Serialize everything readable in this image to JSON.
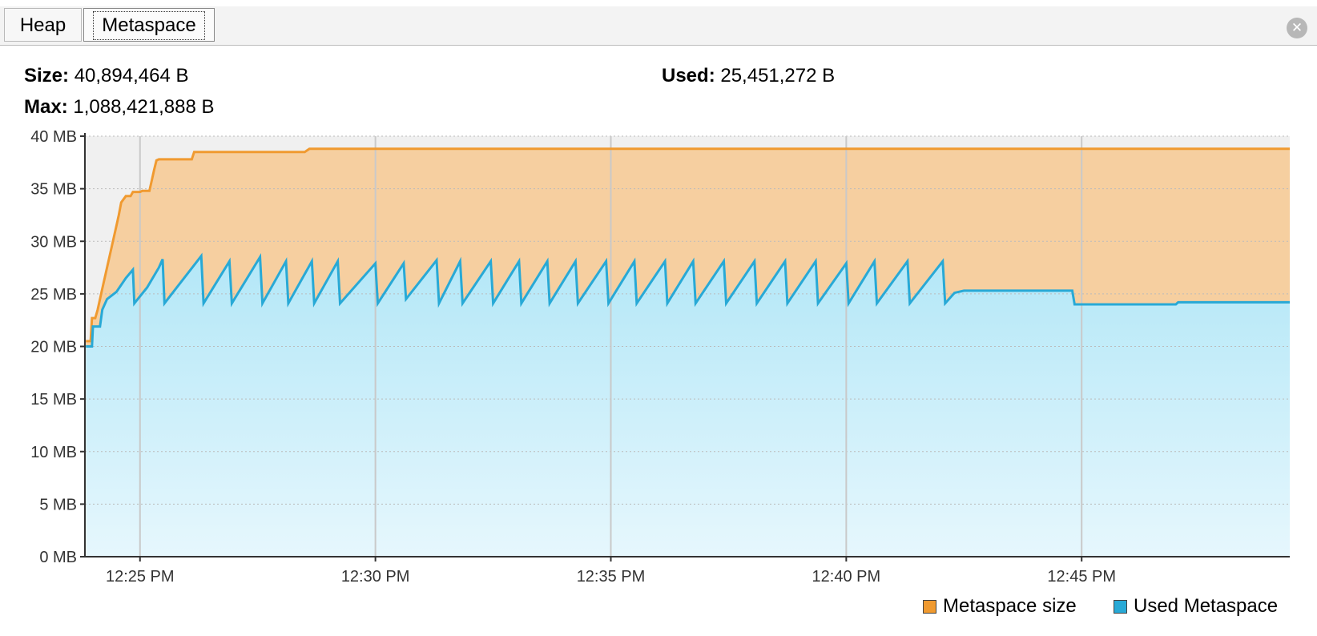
{
  "tabs": [
    {
      "label": "Heap",
      "selected": false
    },
    {
      "label": "Metaspace",
      "selected": true
    }
  ],
  "close_icon": "close-icon",
  "stats": {
    "size_label": "Size:",
    "size_value": "40,894,464 B",
    "max_label": "Max:",
    "max_value": "1,088,421,888 B",
    "used_label": "Used:",
    "used_value": "25,451,272 B"
  },
  "colors": {
    "size_line": "#f09a30",
    "size_fill": "#f6cfa0",
    "used_line": "#28a9d6",
    "used_fill_top": "#b3e7f7",
    "used_fill_bottom": "#e6f7fd"
  },
  "chart_data": {
    "type": "area",
    "y_unit": "MB",
    "ylim": [
      0,
      40
    ],
    "y_ticks": [
      "0 MB",
      "5 MB",
      "10 MB",
      "15 MB",
      "20 MB",
      "25 MB",
      "30 MB",
      "35 MB",
      "40 MB"
    ],
    "x_unit": "minutes after 12:00 PM",
    "xlim": [
      23.83,
      49.42
    ],
    "x_ticks": [
      {
        "value": 25,
        "label": "12:25 PM"
      },
      {
        "value": 30,
        "label": "12:30 PM"
      },
      {
        "value": 35,
        "label": "12:35 PM"
      },
      {
        "value": 40,
        "label": "12:40 PM"
      },
      {
        "value": 45,
        "label": "12:45 PM"
      }
    ],
    "grid": true,
    "legend_position": "bottom-right",
    "series": [
      {
        "name": "Metaspace size",
        "points": [
          [
            23.85,
            20.5
          ],
          [
            23.95,
            20.5
          ],
          [
            23.98,
            22.7
          ],
          [
            24.05,
            22.7
          ],
          [
            24.1,
            23.5
          ],
          [
            24.2,
            25.5
          ],
          [
            24.3,
            27.5
          ],
          [
            24.4,
            29.5
          ],
          [
            24.5,
            31.5
          ],
          [
            24.55,
            32.5
          ],
          [
            24.6,
            33.7
          ],
          [
            24.7,
            34.3
          ],
          [
            24.8,
            34.3
          ],
          [
            24.85,
            34.7
          ],
          [
            25.0,
            34.7
          ],
          [
            25.05,
            34.8
          ],
          [
            25.2,
            34.8
          ],
          [
            25.25,
            35.8
          ],
          [
            25.3,
            36.8
          ],
          [
            25.35,
            37.7
          ],
          [
            25.4,
            37.8
          ],
          [
            26.1,
            37.8
          ],
          [
            26.15,
            38.5
          ],
          [
            26.5,
            38.5
          ],
          [
            28.5,
            38.5
          ],
          [
            28.6,
            38.8
          ],
          [
            30,
            38.8
          ],
          [
            35,
            38.8
          ],
          [
            40,
            38.8
          ],
          [
            45,
            38.8
          ],
          [
            49.42,
            38.8
          ]
        ]
      },
      {
        "name": "Used Metaspace",
        "points": [
          [
            23.85,
            20
          ],
          [
            23.98,
            20
          ],
          [
            24.0,
            21.9
          ],
          [
            24.15,
            21.9
          ],
          [
            24.2,
            23.5
          ],
          [
            24.3,
            24.5
          ],
          [
            24.5,
            25.2
          ],
          [
            24.7,
            26.5
          ],
          [
            24.85,
            27.3
          ],
          [
            24.88,
            24.1
          ],
          [
            25.15,
            25.6
          ],
          [
            25.4,
            27.5
          ],
          [
            25.48,
            28.3
          ],
          [
            25.52,
            24.1
          ],
          [
            26.3,
            28.6
          ],
          [
            26.35,
            24.1
          ],
          [
            26.9,
            28.1
          ],
          [
            26.95,
            24.1
          ],
          [
            27.55,
            28.5
          ],
          [
            27.6,
            24.1
          ],
          [
            28.1,
            28.1
          ],
          [
            28.15,
            24.1
          ],
          [
            28.65,
            28.1
          ],
          [
            28.7,
            24.1
          ],
          [
            29.2,
            28.1
          ],
          [
            29.25,
            24.1
          ],
          [
            30.0,
            27.9
          ],
          [
            30.05,
            24.1
          ],
          [
            30.6,
            27.9
          ],
          [
            30.65,
            24.5
          ],
          [
            31.3,
            28.2
          ],
          [
            31.35,
            24.1
          ],
          [
            31.8,
            28.1
          ],
          [
            31.85,
            24.1
          ],
          [
            32.45,
            28.1
          ],
          [
            32.5,
            24.1
          ],
          [
            33.05,
            28.1
          ],
          [
            33.1,
            24.1
          ],
          [
            33.65,
            28.1
          ],
          [
            33.7,
            24.1
          ],
          [
            34.25,
            28.1
          ],
          [
            34.3,
            24.1
          ],
          [
            34.9,
            28.1
          ],
          [
            34.95,
            24.1
          ],
          [
            35.5,
            28.1
          ],
          [
            35.55,
            24.1
          ],
          [
            36.15,
            28.1
          ],
          [
            36.2,
            24.1
          ],
          [
            36.75,
            28.1
          ],
          [
            36.8,
            24.1
          ],
          [
            37.4,
            28.1
          ],
          [
            37.45,
            24.1
          ],
          [
            38.05,
            28.1
          ],
          [
            38.1,
            24.1
          ],
          [
            38.7,
            28.1
          ],
          [
            38.75,
            24.1
          ],
          [
            39.35,
            28.1
          ],
          [
            39.4,
            24.1
          ],
          [
            40.0,
            27.9
          ],
          [
            40.05,
            24.1
          ],
          [
            40.6,
            28.1
          ],
          [
            40.65,
            24.1
          ],
          [
            41.3,
            28.1
          ],
          [
            41.35,
            24.1
          ],
          [
            42.05,
            28.1
          ],
          [
            42.1,
            24.1
          ],
          [
            42.3,
            25.1
          ],
          [
            42.5,
            25.3
          ],
          [
            44.8,
            25.3
          ],
          [
            44.85,
            24
          ],
          [
            46.5,
            24
          ],
          [
            47.0,
            24
          ],
          [
            47.05,
            24.2
          ],
          [
            49.42,
            24.2
          ]
        ]
      }
    ]
  }
}
